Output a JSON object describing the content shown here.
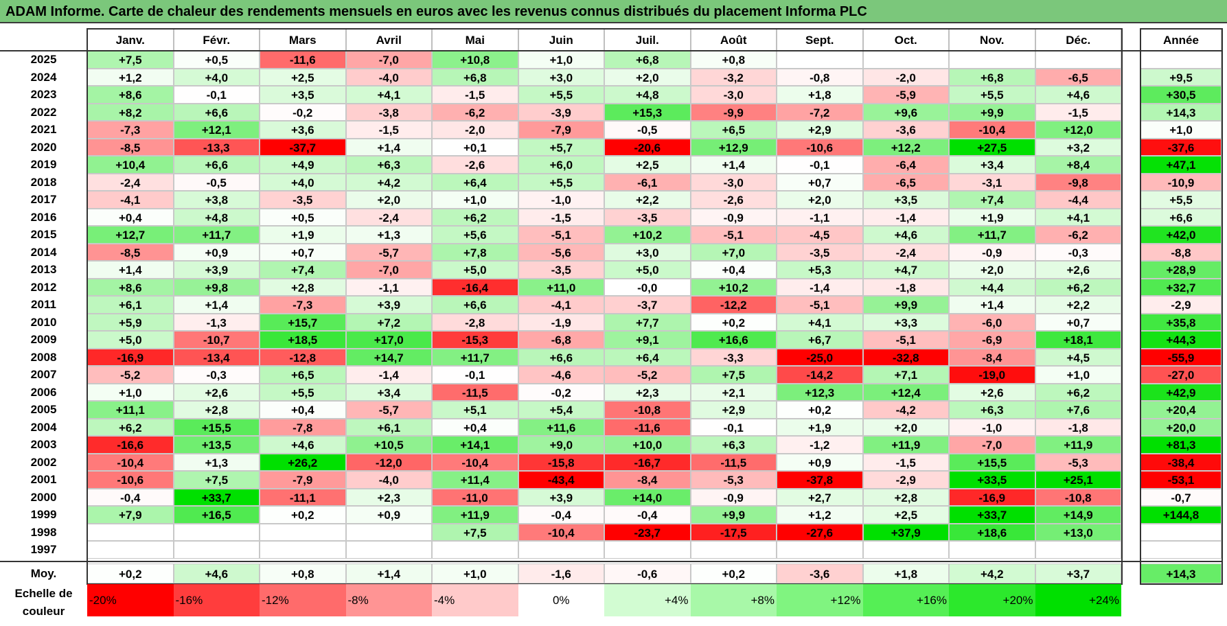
{
  "title": "ADAM Informe. Carte de chaleur des rendements mensuels en euros avec les revenus connus distribués du placement Informa PLC",
  "chart_data": {
    "type": "heatmap",
    "columns": [
      "Janv.",
      "Févr.",
      "Mars",
      "Avril",
      "Mai",
      "Juin",
      "Juil.",
      "Août",
      "Sept.",
      "Oct.",
      "Nov.",
      "Déc."
    ],
    "year_column": "Année",
    "rows": [
      {
        "label": "2025",
        "values": [
          "+7,5",
          "+0,5",
          "-11,6",
          "-7,0",
          "+10,8",
          "+1,0",
          "+6,8",
          "+0,8",
          "",
          "",
          "",
          ""
        ],
        "year": ""
      },
      {
        "label": "2024",
        "values": [
          "+1,2",
          "+4,0",
          "+2,5",
          "-4,0",
          "+6,8",
          "+3,0",
          "+2,0",
          "-3,2",
          "-0,8",
          "-2,0",
          "+6,8",
          "-6,5"
        ],
        "year": "+9,5"
      },
      {
        "label": "2023",
        "values": [
          "+8,6",
          "-0,1",
          "+3,5",
          "+4,1",
          "-1,5",
          "+5,5",
          "+4,8",
          "-3,0",
          "+1,8",
          "-5,9",
          "+5,5",
          "+4,6"
        ],
        "year": "+30,5"
      },
      {
        "label": "2022",
        "values": [
          "+8,2",
          "+6,6",
          "-0,2",
          "-3,8",
          "-6,2",
          "-3,9",
          "+15,3",
          "-9,9",
          "-7,2",
          "+9,6",
          "+9,9",
          "-1,5"
        ],
        "year": "+14,3"
      },
      {
        "label": "2021",
        "values": [
          "-7,3",
          "+12,1",
          "+3,6",
          "-1,5",
          "-2,0",
          "-7,9",
          "-0,5",
          "+6,5",
          "+2,9",
          "-3,6",
          "-10,4",
          "+12,0"
        ],
        "year": "+1,0"
      },
      {
        "label": "2020",
        "values": [
          "-8,5",
          "-13,3",
          "-37,7",
          "+1,4",
          "+0,1",
          "+5,7",
          "-20,6",
          "+12,9",
          "-10,6",
          "+12,2",
          "+27,5",
          "+3,2"
        ],
        "year": "-37,6"
      },
      {
        "label": "2019",
        "values": [
          "+10,4",
          "+6,6",
          "+4,9",
          "+6,3",
          "-2,6",
          "+6,0",
          "+2,5",
          "+1,4",
          "-0,1",
          "-6,4",
          "+3,4",
          "+8,4"
        ],
        "year": "+47,1"
      },
      {
        "label": "2018",
        "values": [
          "-2,4",
          "-0,5",
          "+4,0",
          "+4,2",
          "+6,4",
          "+5,5",
          "-6,1",
          "-3,0",
          "+0,7",
          "-6,5",
          "-3,1",
          "-9,8"
        ],
        "year": "-10,9"
      },
      {
        "label": "2017",
        "values": [
          "-4,1",
          "+3,8",
          "-3,5",
          "+2,0",
          "+1,0",
          "-1,0",
          "+2,2",
          "-2,6",
          "+2,0",
          "+3,5",
          "+7,4",
          "-4,4"
        ],
        "year": "+5,5"
      },
      {
        "label": "2016",
        "values": [
          "+0,4",
          "+4,8",
          "+0,5",
          "-2,4",
          "+6,2",
          "-1,5",
          "-3,5",
          "-0,9",
          "-1,1",
          "-1,4",
          "+1,9",
          "+4,1"
        ],
        "year": "+6,6"
      },
      {
        "label": "2015",
        "values": [
          "+12,7",
          "+11,7",
          "+1,9",
          "+1,3",
          "+5,6",
          "-5,1",
          "+10,2",
          "-5,1",
          "-4,5",
          "+4,6",
          "+11,7",
          "-6,2"
        ],
        "year": "+42,0"
      },
      {
        "label": "2014",
        "values": [
          "-8,5",
          "+0,9",
          "+0,7",
          "-5,7",
          "+7,8",
          "-5,6",
          "+3,0",
          "+7,0",
          "-3,5",
          "-2,4",
          "-0,9",
          "-0,3"
        ],
        "year": "-8,8"
      },
      {
        "label": "2013",
        "values": [
          "+1,4",
          "+3,9",
          "+7,4",
          "-7,0",
          "+5,0",
          "-3,5",
          "+5,0",
          "+0,4",
          "+5,3",
          "+4,7",
          "+2,0",
          "+2,6"
        ],
        "year": "+28,9"
      },
      {
        "label": "2012",
        "values": [
          "+8,6",
          "+9,8",
          "+2,8",
          "-1,1",
          "-16,4",
          "+11,0",
          "-0,0",
          "+10,2",
          "-1,4",
          "-1,8",
          "+4,4",
          "+6,2"
        ],
        "year": "+32,7"
      },
      {
        "label": "2011",
        "values": [
          "+6,1",
          "+1,4",
          "-7,3",
          "+3,9",
          "+6,6",
          "-4,1",
          "-3,7",
          "-12,2",
          "-5,1",
          "+9,9",
          "+1,4",
          "+2,2"
        ],
        "year": "-2,9"
      },
      {
        "label": "2010",
        "values": [
          "+5,9",
          "-1,3",
          "+15,7",
          "+7,2",
          "-2,8",
          "-1,9",
          "+7,7",
          "+0,2",
          "+4,1",
          "+3,3",
          "-6,0",
          "+0,7"
        ],
        "year": "+35,8"
      },
      {
        "label": "2009",
        "values": [
          "+5,0",
          "-10,7",
          "+18,5",
          "+17,0",
          "-15,3",
          "-6,8",
          "+9,1",
          "+16,6",
          "+6,7",
          "-5,1",
          "-6,9",
          "+18,1"
        ],
        "year": "+44,3"
      },
      {
        "label": "2008",
        "values": [
          "-16,9",
          "-13,4",
          "-12,8",
          "+14,7",
          "+11,7",
          "+6,6",
          "+6,4",
          "-3,3",
          "-25,0",
          "-32,8",
          "-8,4",
          "+4,5"
        ],
        "year": "-55,9"
      },
      {
        "label": "2007",
        "values": [
          "-5,2",
          "-0,3",
          "+6,5",
          "-1,4",
          "-0,1",
          "-4,6",
          "-5,2",
          "+7,5",
          "-14,2",
          "+7,1",
          "-19,0",
          "+1,0"
        ],
        "year": "-27,0"
      },
      {
        "label": "2006",
        "values": [
          "+1,0",
          "+2,6",
          "+5,5",
          "+3,4",
          "-11,5",
          "-0,2",
          "+2,3",
          "+2,1",
          "+12,3",
          "+12,4",
          "+2,6",
          "+6,2"
        ],
        "year": "+42,9"
      },
      {
        "label": "2005",
        "values": [
          "+11,1",
          "+2,8",
          "+0,4",
          "-5,7",
          "+5,1",
          "+5,4",
          "-10,8",
          "+2,9",
          "+0,2",
          "-4,2",
          "+6,3",
          "+7,6"
        ],
        "year": "+20,4"
      },
      {
        "label": "2004",
        "values": [
          "+6,2",
          "+15,5",
          "-7,8",
          "+6,1",
          "+0,4",
          "+11,6",
          "-11,6",
          "-0,1",
          "+1,9",
          "+2,0",
          "-1,0",
          "-1,8"
        ],
        "year": "+20,0"
      },
      {
        "label": "2003",
        "values": [
          "-16,6",
          "+13,5",
          "+4,6",
          "+10,5",
          "+14,1",
          "+9,0",
          "+10,0",
          "+6,3",
          "-1,2",
          "+11,9",
          "-7,0",
          "+11,9"
        ],
        "year": "+81,3"
      },
      {
        "label": "2002",
        "values": [
          "-10,4",
          "+1,3",
          "+26,2",
          "-12,0",
          "-10,4",
          "-15,8",
          "-16,7",
          "-11,5",
          "+0,9",
          "-1,5",
          "+15,5",
          "-5,3"
        ],
        "year": "-38,4"
      },
      {
        "label": "2001",
        "values": [
          "-10,6",
          "+7,5",
          "-7,9",
          "-4,0",
          "+11,4",
          "-43,4",
          "-8,4",
          "-5,3",
          "-37,8",
          "-2,9",
          "+33,5",
          "+25,1"
        ],
        "year": "-53,1"
      },
      {
        "label": "2000",
        "values": [
          "-0,4",
          "+33,7",
          "-11,1",
          "+2,3",
          "-11,0",
          "+3,9",
          "+14,0",
          "-0,9",
          "+2,7",
          "+2,8",
          "-16,9",
          "-10,8"
        ],
        "year": "-0,7"
      },
      {
        "label": "1999",
        "values": [
          "+7,9",
          "+16,5",
          "+0,2",
          "+0,9",
          "+11,9",
          "-0,4",
          "-0,4",
          "+9,9",
          "+1,2",
          "+2,5",
          "+33,7",
          "+14,9"
        ],
        "year": "+144,8"
      },
      {
        "label": "1998",
        "values": [
          "",
          "",
          "",
          "",
          "+7,5",
          "-10,4",
          "-23,7",
          "-17,5",
          "-27,6",
          "+37,9",
          "+18,6",
          "+13,0"
        ],
        "year": ""
      },
      {
        "label": "1997",
        "values": [
          "",
          "",
          "",
          "",
          "",
          "",
          "",
          "",
          "",
          "",
          "",
          ""
        ],
        "year": ""
      }
    ],
    "average": {
      "label": "Moy.",
      "values": [
        "+0,2",
        "+4,6",
        "+0,8",
        "+1,4",
        "+1,0",
        "-1,6",
        "-0,6",
        "+0,2",
        "-3,6",
        "+1,8",
        "+4,2",
        "+3,7"
      ],
      "year": "+14,3"
    },
    "scale": {
      "label": "Echelle de couleur",
      "items": [
        {
          "text": "-20%",
          "color": "#ff0000"
        },
        {
          "text": "-16%",
          "color": "#ff3d3d"
        },
        {
          "text": "-12%",
          "color": "#ff6b6b"
        },
        {
          "text": "-8%",
          "color": "#ff9494"
        },
        {
          "text": "-4%",
          "color": "#ffcaca"
        },
        {
          "text": "0%",
          "color": "#ffffff"
        },
        {
          "text": "+4%",
          "color": "#d2fcd2"
        },
        {
          "text": "+8%",
          "color": "#a8f8a8"
        },
        {
          "text": "+12%",
          "color": "#80f480"
        },
        {
          "text": "+16%",
          "color": "#55ef55"
        },
        {
          "text": "+20%",
          "color": "#2ce82c"
        },
        {
          "text": "+24%",
          "color": "#00e000"
        }
      ]
    }
  }
}
